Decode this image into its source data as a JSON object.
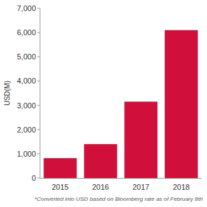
{
  "chart_data": {
    "type": "bar",
    "y_label": "USD(M)",
    "annotations": [
      "*Converted into USD based on Bloomberg rate as of February 8th"
    ],
    "categories": [
      "2015",
      "2016",
      "2017",
      "2018"
    ],
    "values": [
      820,
      1400,
      3150,
      6100
    ],
    "color": "#d0103a",
    "ylim": [
      0,
      7000
    ],
    "yticks": [
      0,
      {
        "value": 1000,
        "label": "1,000"
      },
      {
        "value": 2000,
        "label": "2,000"
      },
      {
        "value": 3000,
        "label": "3,000"
      },
      {
        "value": 4000,
        "label": "4,000"
      },
      {
        "value": 5000,
        "label": "5,000"
      },
      {
        "value": 6000,
        "label": "6,000"
      },
      {
        "value": 7000,
        "label": "7,000"
      }
    ],
    "grid": false
  }
}
